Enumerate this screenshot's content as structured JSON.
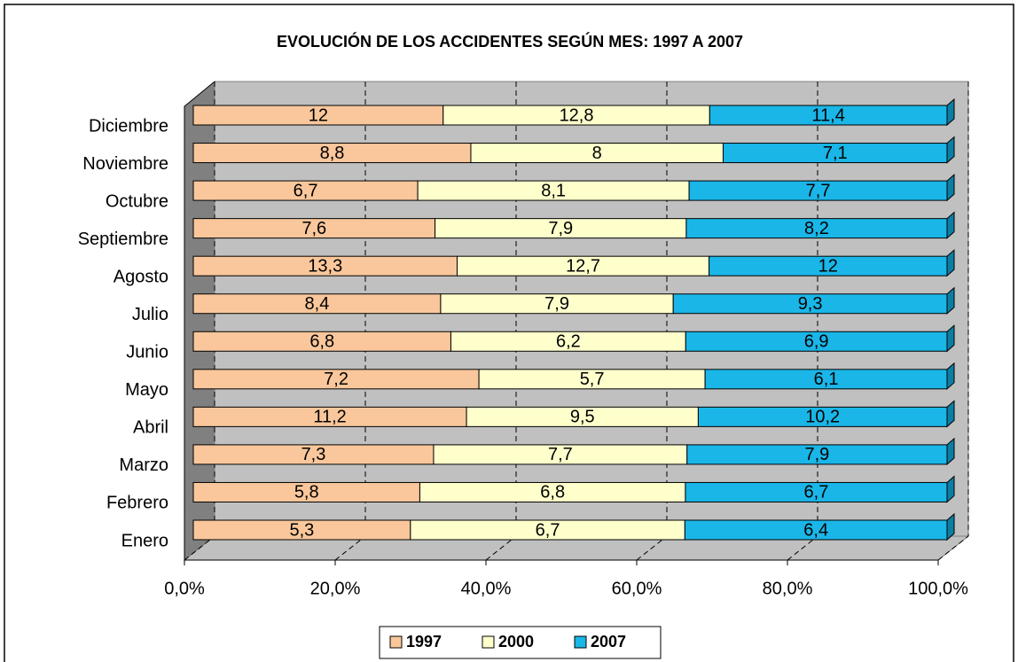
{
  "chart_data": {
    "type": "bar",
    "orientation": "horizontal",
    "stacked": "percent",
    "title": "EVOLUCIÓN DE LOS ACCIDENTES SEGÚN MES: 1997 A 2007",
    "categories": [
      "Enero",
      "Febrero",
      "Marzo",
      "Abril",
      "Mayo",
      "Junio",
      "Julio",
      "Agosto",
      "Septiembre",
      "Octubre",
      "Noviembre",
      "Diciembre"
    ],
    "series": [
      {
        "name": "1997",
        "color": "#f9c79b",
        "values": [
          5.3,
          5.8,
          7.3,
          11.2,
          7.2,
          6.8,
          8.4,
          13.3,
          7.6,
          6.7,
          8.8,
          12
        ],
        "value_labels": [
          "5,3",
          "5,8",
          "7,3",
          "11,2",
          "7,2",
          "6,8",
          "8,4",
          "13,3",
          "7,6",
          "6,7",
          "8,8",
          "12"
        ]
      },
      {
        "name": "2000",
        "color": "#ffffcc",
        "values": [
          6.7,
          6.8,
          7.7,
          9.5,
          5.7,
          6.2,
          7.9,
          12.7,
          7.9,
          8.1,
          8,
          12.8
        ],
        "value_labels": [
          "6,7",
          "6,8",
          "7,7",
          "9,5",
          "5,7",
          "6,2",
          "7,9",
          "12,7",
          "7,9",
          "8,1",
          "8",
          "12,8"
        ]
      },
      {
        "name": "2007",
        "color": "#1ab6e8",
        "values": [
          6.4,
          6.7,
          7.9,
          10.2,
          6.1,
          6.9,
          9.3,
          12,
          8.2,
          7.7,
          7.1,
          11.4
        ],
        "value_labels": [
          "6,4",
          "6,7",
          "7,9",
          "10,2",
          "6,1",
          "6,9",
          "9,3",
          "12",
          "8,2",
          "7,7",
          "7,1",
          "11,4"
        ]
      }
    ],
    "xlim": [
      0,
      100
    ],
    "xticks": [
      {
        "value": 0,
        "label": "0,0%"
      },
      {
        "value": 20,
        "label": "20,0%"
      },
      {
        "value": 40,
        "label": "40,0%"
      },
      {
        "value": 60,
        "label": "60,0%"
      },
      {
        "value": 80,
        "label": "80,0%"
      },
      {
        "value": 100,
        "label": "100,0%"
      }
    ],
    "grid": true,
    "legend": "bottom"
  }
}
